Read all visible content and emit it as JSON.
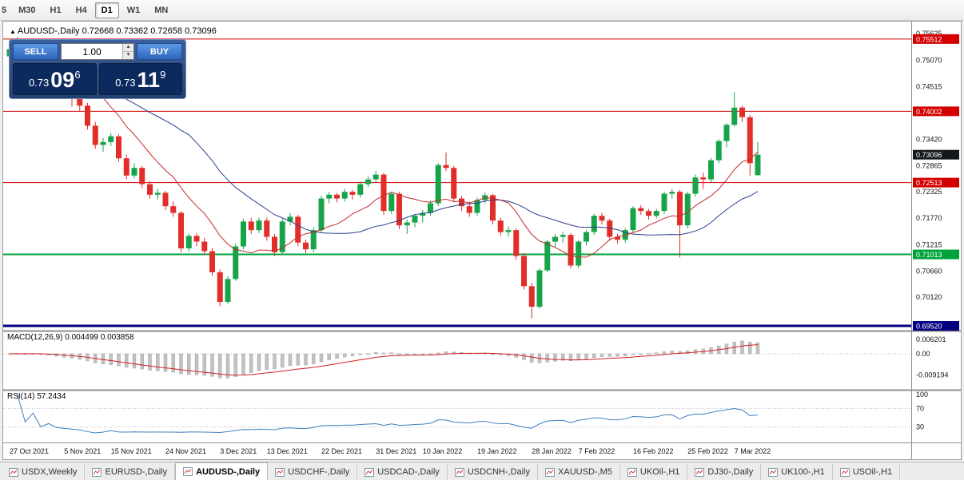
{
  "toolbar": {
    "timeframes": [
      {
        "label": "5",
        "active": false
      },
      {
        "label": "M30",
        "active": false
      },
      {
        "label": "H1",
        "active": false
      },
      {
        "label": "H4",
        "active": false
      },
      {
        "label": "D1",
        "active": true
      },
      {
        "label": "W1",
        "active": false
      },
      {
        "label": "MN",
        "active": false
      }
    ]
  },
  "chart": {
    "arrow": "▲",
    "title": "AUDUSD-,Daily",
    "ohlc": "0.72668 0.73362 0.72658 0.73096"
  },
  "trade_panel": {
    "sell_label": "SELL",
    "buy_label": "BUY",
    "volume": "1.00",
    "sell_price": {
      "prefix": "0.73",
      "big": "09",
      "sup": "6"
    },
    "buy_price": {
      "prefix": "0.73",
      "big": "11",
      "sup": "9"
    }
  },
  "chart_data": {
    "type": "candlestick",
    "symbol": "AUDUSD",
    "timeframe": "Daily",
    "up_color": "#17a449",
    "down_color": "#e22d28",
    "ma_fast": {
      "period": 10,
      "color": "#c32a2a"
    },
    "ma_slow": {
      "period": 24,
      "color": "#27408b"
    },
    "levels": [
      {
        "value": 0.75512,
        "label": "0.75512",
        "color": "#d40000",
        "width": 1
      },
      {
        "value": 0.74002,
        "label": "0.74002",
        "color": "#d40000",
        "width": 1
      },
      {
        "value": 0.72513,
        "label": "0.72513",
        "color": "#d40000",
        "width": 1
      },
      {
        "value": 0.71013,
        "label": "0.71013",
        "color": "#00a33c",
        "width": 2
      },
      {
        "value": 0.6952,
        "label": "0.69520",
        "color": "#000080",
        "width": 3
      }
    ],
    "current_price": {
      "value": 0.73096,
      "label": "0.73096",
      "color": "#14181d"
    },
    "axis_labels": [
      {
        "text": "0.75625",
        "value": 0.75625
      },
      {
        "text": "0.75070",
        "value": 0.7507
      },
      {
        "text": "0.74515",
        "value": 0.74515
      },
      {
        "text": "0.73420",
        "value": 0.7342
      },
      {
        "text": "0.72865",
        "value": 0.72865
      },
      {
        "text": "0.72325",
        "value": 0.72325
      },
      {
        "text": "0.71770",
        "value": 0.7177
      },
      {
        "text": "0.71215",
        "value": 0.71215
      },
      {
        "text": "0.70660",
        "value": 0.7066
      },
      {
        "text": "0.70120",
        "value": 0.7012
      }
    ],
    "date_ticks": [
      {
        "label": "27 Oct 2021",
        "i": 0
      },
      {
        "label": "5 Nov 2021",
        "i": 7
      },
      {
        "label": "15 Nov 2021",
        "i": 13
      },
      {
        "label": "24 Nov 2021",
        "i": 20
      },
      {
        "label": "3 Dec 2021",
        "i": 27
      },
      {
        "label": "13 Dec 2021",
        "i": 33
      },
      {
        "label": "22 Dec 2021",
        "i": 40
      },
      {
        "label": "31 Dec 2021",
        "i": 47
      },
      {
        "label": "10 Jan 2022",
        "i": 53
      },
      {
        "label": "19 Jan 2022",
        "i": 60
      },
      {
        "label": "28 Jan 2022",
        "i": 67
      },
      {
        "label": "7 Feb 2022",
        "i": 73
      },
      {
        "label": "16 Feb 2022",
        "i": 80
      },
      {
        "label": "25 Feb 2022",
        "i": 87
      },
      {
        "label": "7 Mar 2022",
        "i": 93
      }
    ],
    "candles": [
      [
        0.7515,
        0.7538,
        0.7505,
        0.753
      ],
      [
        0.753,
        0.7555,
        0.7522,
        0.7548
      ],
      [
        0.7548,
        0.7552,
        0.7516,
        0.7522
      ],
      [
        0.7522,
        0.7548,
        0.7514,
        0.7543
      ],
      [
        0.7543,
        0.7546,
        0.7472,
        0.748
      ],
      [
        0.748,
        0.7502,
        0.747,
        0.7494
      ],
      [
        0.7494,
        0.7498,
        0.7442,
        0.7452
      ],
      [
        0.7452,
        0.7462,
        0.7432,
        0.744
      ],
      [
        0.744,
        0.745,
        0.741,
        0.7428
      ],
      [
        0.7428,
        0.7436,
        0.74,
        0.7412
      ],
      [
        0.7412,
        0.7418,
        0.7362,
        0.737
      ],
      [
        0.737,
        0.7378,
        0.7322,
        0.733
      ],
      [
        0.733,
        0.7345,
        0.7316,
        0.7336
      ],
      [
        0.7336,
        0.7355,
        0.7328,
        0.7348
      ],
      [
        0.7348,
        0.7352,
        0.7295,
        0.7302
      ],
      [
        0.7302,
        0.731,
        0.7258,
        0.7266
      ],
      [
        0.7266,
        0.7292,
        0.726,
        0.7282
      ],
      [
        0.7282,
        0.7286,
        0.724,
        0.7248
      ],
      [
        0.7248,
        0.7254,
        0.7218,
        0.7226
      ],
      [
        0.7226,
        0.7238,
        0.7216,
        0.723
      ],
      [
        0.723,
        0.7234,
        0.7194,
        0.7202
      ],
      [
        0.7202,
        0.7212,
        0.718,
        0.7188
      ],
      [
        0.7188,
        0.7192,
        0.7106,
        0.7114
      ],
      [
        0.7114,
        0.7145,
        0.7108,
        0.714
      ],
      [
        0.714,
        0.7146,
        0.7118,
        0.7128
      ],
      [
        0.7128,
        0.7136,
        0.71,
        0.7108
      ],
      [
        0.7108,
        0.7114,
        0.7056,
        0.7064
      ],
      [
        0.7064,
        0.707,
        0.6993,
        0.7002
      ],
      [
        0.7002,
        0.7056,
        0.6998,
        0.705
      ],
      [
        0.705,
        0.7124,
        0.7046,
        0.7118
      ],
      [
        0.7118,
        0.7176,
        0.7112,
        0.717
      ],
      [
        0.717,
        0.7178,
        0.7144,
        0.7152
      ],
      [
        0.7152,
        0.7178,
        0.7146,
        0.7172
      ],
      [
        0.7172,
        0.7178,
        0.713,
        0.7138
      ],
      [
        0.7138,
        0.7144,
        0.7098,
        0.7106
      ],
      [
        0.7106,
        0.7176,
        0.71,
        0.717
      ],
      [
        0.717,
        0.7188,
        0.7162,
        0.718
      ],
      [
        0.718,
        0.7184,
        0.7118,
        0.7126
      ],
      [
        0.7126,
        0.7132,
        0.7104,
        0.7112
      ],
      [
        0.7112,
        0.7158,
        0.7106,
        0.7152
      ],
      [
        0.7152,
        0.7224,
        0.7146,
        0.7218
      ],
      [
        0.7218,
        0.7232,
        0.7208,
        0.7226
      ],
      [
        0.7226,
        0.723,
        0.721,
        0.7218
      ],
      [
        0.7218,
        0.7238,
        0.7212,
        0.7232
      ],
      [
        0.7232,
        0.7236,
        0.7216,
        0.7226
      ],
      [
        0.7226,
        0.7254,
        0.722,
        0.7248
      ],
      [
        0.7248,
        0.7264,
        0.7242,
        0.7258
      ],
      [
        0.7258,
        0.7276,
        0.7252,
        0.7268
      ],
      [
        0.7268,
        0.7272,
        0.7184,
        0.7192
      ],
      [
        0.7192,
        0.7232,
        0.7186,
        0.7228
      ],
      [
        0.7228,
        0.7232,
        0.7154,
        0.7162
      ],
      [
        0.7162,
        0.7174,
        0.7144,
        0.7168
      ],
      [
        0.7168,
        0.7186,
        0.7158,
        0.7182
      ],
      [
        0.7182,
        0.7194,
        0.7168,
        0.7188
      ],
      [
        0.7188,
        0.7214,
        0.7182,
        0.7208
      ],
      [
        0.7208,
        0.7292,
        0.7202,
        0.7288
      ],
      [
        0.7288,
        0.7314,
        0.7276,
        0.7282
      ],
      [
        0.7282,
        0.7286,
        0.721,
        0.7218
      ],
      [
        0.7218,
        0.7224,
        0.7192,
        0.7202
      ],
      [
        0.7202,
        0.7212,
        0.718,
        0.7188
      ],
      [
        0.7188,
        0.722,
        0.7182,
        0.7215
      ],
      [
        0.7215,
        0.723,
        0.7208,
        0.7225
      ],
      [
        0.7225,
        0.7228,
        0.7164,
        0.7172
      ],
      [
        0.7172,
        0.7178,
        0.714,
        0.7148
      ],
      [
        0.7148,
        0.716,
        0.7138,
        0.7152
      ],
      [
        0.7152,
        0.7156,
        0.709,
        0.7098
      ],
      [
        0.7098,
        0.7104,
        0.7028,
        0.7035
      ],
      [
        0.7035,
        0.7042,
        0.6968,
        0.6992
      ],
      [
        0.6992,
        0.7072,
        0.6988,
        0.7068
      ],
      [
        0.7068,
        0.7132,
        0.7064,
        0.7128
      ],
      [
        0.7128,
        0.7144,
        0.7116,
        0.7138
      ],
      [
        0.7138,
        0.7148,
        0.7126,
        0.7142
      ],
      [
        0.7142,
        0.7146,
        0.7072,
        0.7078
      ],
      [
        0.7078,
        0.7132,
        0.7072,
        0.7128
      ],
      [
        0.7128,
        0.7152,
        0.712,
        0.7148
      ],
      [
        0.7148,
        0.7186,
        0.7142,
        0.7182
      ],
      [
        0.7182,
        0.7188,
        0.7164,
        0.7172
      ],
      [
        0.7172,
        0.7176,
        0.713,
        0.7138
      ],
      [
        0.7138,
        0.7144,
        0.7124,
        0.7132
      ],
      [
        0.7132,
        0.7156,
        0.7126,
        0.7152
      ],
      [
        0.7152,
        0.7202,
        0.7146,
        0.7198
      ],
      [
        0.7198,
        0.7204,
        0.7184,
        0.7192
      ],
      [
        0.7192,
        0.7196,
        0.7174,
        0.7182
      ],
      [
        0.7182,
        0.7196,
        0.7176,
        0.7192
      ],
      [
        0.7192,
        0.7232,
        0.7186,
        0.7228
      ],
      [
        0.7228,
        0.7238,
        0.7218,
        0.7232
      ],
      [
        0.7232,
        0.7236,
        0.7095,
        0.7162
      ],
      [
        0.7162,
        0.7232,
        0.7156,
        0.7228
      ],
      [
        0.7228,
        0.7268,
        0.7222,
        0.7262
      ],
      [
        0.7262,
        0.7272,
        0.7238,
        0.7258
      ],
      [
        0.7258,
        0.7302,
        0.7252,
        0.7298
      ],
      [
        0.7298,
        0.7342,
        0.7292,
        0.7338
      ],
      [
        0.7338,
        0.7376,
        0.7325,
        0.7372
      ],
      [
        0.7372,
        0.744,
        0.7368,
        0.7408
      ],
      [
        0.7408,
        0.7412,
        0.7378,
        0.7388
      ],
      [
        0.7388,
        0.7392,
        0.7266,
        0.7292
      ],
      [
        0.72668,
        0.73362,
        0.72658,
        0.73096
      ]
    ],
    "macd": {
      "label": "MACD(12,26,9) 0.004499 0.003858",
      "fast": 12,
      "slow": 26,
      "signal": 9,
      "hist_color": "#c2c2c2",
      "signal_color": "#d02020",
      "axis": [
        {
          "text": "0.006201",
          "value": 0.0062
        },
        {
          "text": "0.00",
          "value": 0
        },
        {
          "text": "-0.009194",
          "value": -0.0092
        }
      ]
    },
    "rsi": {
      "label": "RSI(14) 57.2434",
      "period": 14,
      "color": "#3f7fbf",
      "levels": [
        70,
        30
      ],
      "axis": [
        {
          "text": "100",
          "value": 100
        },
        {
          "text": "70",
          "value": 70
        },
        {
          "text": "30",
          "value": 30
        }
      ]
    }
  },
  "tabs": [
    {
      "label": "USDX,Weekly",
      "active": false
    },
    {
      "label": "EURUSD-,Daily",
      "active": false
    },
    {
      "label": "AUDUSD-,Daily",
      "active": true
    },
    {
      "label": "USDCHF-,Daily",
      "active": false
    },
    {
      "label": "USDCAD-,Daily",
      "active": false
    },
    {
      "label": "USDCNH-,Daily",
      "active": false
    },
    {
      "label": "XAUUSD-,M5",
      "active": false
    },
    {
      "label": "UKOil-,H1",
      "active": false
    },
    {
      "label": "DJ30-,Daily",
      "active": false
    },
    {
      "label": "UK100-,H1",
      "active": false
    },
    {
      "label": "USOil-,H1",
      "active": false
    }
  ]
}
